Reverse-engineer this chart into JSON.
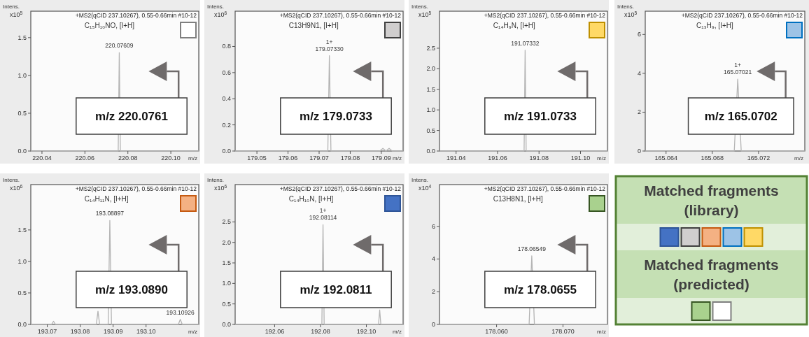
{
  "chart_data": [
    {
      "type": "line",
      "xlabel": "m/z",
      "ylabel": "Intens.",
      "annotations": [
        "+MS2(qCID 237.10267), 0.55-0.66min #10-12",
        "C₁₅H₁₀NO, [I+H]",
        {
          "text": "220.07609",
          "x": 220.076,
          "y": 1.3
        },
        "m/z 220.0761",
        "x10$^{5}$"
      ],
      "xlim": [
        220.0348,
        220.113
      ],
      "ylim": [
        0,
        1.85
      ],
      "xticks": [
        220.04,
        220.06,
        220.08,
        {
          "value": 220.1,
          "label": "220.10"
        }
      ],
      "yticks": [
        {
          "value": 0,
          "label": "0.0"
        },
        0.5,
        {
          "value": 1,
          "label": "1.0"
        },
        1.5
      ],
      "series": [
        {
          "color": "#b4b4b4",
          "x": [
            220.0348,
            220.0755,
            220.076,
            220.0765,
            220.113
          ],
          "values": [
            0,
            0,
            1.3,
            0,
            0
          ]
        }
      ]
    },
    {
      "type": "line",
      "xlabel": "m/z",
      "ylabel": "Intens.",
      "annotations": [
        "+MS2(qCID 237.10267), 0.55-0.66min #10-12",
        "C13H9N1, [I+H]",
        {
          "text": "1+\n179.07330",
          "x": 179.0733,
          "y": 0.73
        },
        "m/z 179.0733",
        "x10$^{6}$"
      ],
      "xlim": [
        179.043,
        179.097
      ],
      "ylim": [
        0,
        1.07
      ],
      "xticks": [
        179.05,
        179.06,
        179.07,
        179.08,
        179.09
      ],
      "yticks": [
        {
          "value": 0,
          "label": "0.0"
        },
        0.2,
        0.4,
        0.6,
        0.8
      ],
      "series": [
        {
          "color": "#b4b4b4",
          "x": [
            179.043,
            179.0728,
            179.0733,
            179.0738,
            179.0895,
            179.0905,
            179.0915,
            179.0925,
            179.0935,
            179.097
          ],
          "values": [
            0,
            0,
            0.73,
            0,
            0,
            0.02,
            0,
            0.02,
            0,
            0
          ]
        }
      ]
    },
    {
      "type": "line",
      "xlabel": "m/z",
      "ylabel": "Intens.",
      "annotations": [
        "+MS2(qCID 237.10267), 0.55-0.66min #10-12",
        "C₁₄H₉N, [I+H]",
        {
          "text": "191.07332",
          "x": 191.0733,
          "y": 2.45
        },
        "m/z 191.0733",
        "x10$^{5}$"
      ],
      "xlim": [
        191.032,
        191.113
      ],
      "ylim": [
        0,
        3.4
      ],
      "xticks": [
        191.04,
        191.06,
        191.08,
        {
          "value": 191.1,
          "label": "191.10"
        }
      ],
      "yticks": [
        {
          "value": 0,
          "label": "0.0"
        },
        0.5,
        {
          "value": 1,
          "label": "1.0"
        },
        1.5,
        {
          "value": 2,
          "label": "2.0"
        },
        2.5
      ],
      "series": [
        {
          "color": "#b4b4b4",
          "x": [
            191.032,
            191.0728,
            191.0733,
            191.0738,
            191.113
          ],
          "values": [
            0,
            0,
            2.45,
            0,
            0
          ]
        }
      ]
    },
    {
      "type": "line",
      "xlabel": "m/z",
      "ylabel": "Intens.",
      "annotations": [
        "+MS2(qCID 237.10267), 0.55-0.66min #10-12",
        "C₁₃H₉, [I+H]",
        {
          "text": "1+\n165.07021",
          "x": 165.0702,
          "y": 3.7
        },
        "m/z 165.0702",
        "x10$^{5}$"
      ],
      "xlim": [
        165.0622,
        165.076
      ],
      "ylim": [
        0,
        7.2
      ],
      "xticks": [
        165.064,
        165.068,
        165.072
      ],
      "yticks": [
        0,
        2,
        4,
        6
      ],
      "series": [
        {
          "color": "#b4b4b4",
          "x": [
            165.0622,
            165.0699,
            165.0702,
            165.0705,
            165.076
          ],
          "values": [
            0,
            0,
            3.7,
            0,
            0
          ]
        }
      ]
    },
    {
      "type": "line",
      "xlabel": "m/z",
      "ylabel": "Intens.",
      "annotations": [
        "+MS2(qCID 237.10267), 0.55-0.66min #10-12",
        "C₁₄H₁₁N, [I+H]",
        {
          "text": "193.08897",
          "x": 193.089,
          "y": 1.65
        },
        {
          "text": "193.10926",
          "x": 193.1104,
          "y": 0.08
        },
        "m/z 193.0890",
        "x10$^{6}$"
      ],
      "xlim": [
        193.065,
        193.116
      ],
      "ylim": [
        0,
        2.22
      ],
      "xticks": [
        193.07,
        193.08,
        193.09,
        {
          "value": 193.1,
          "label": "193.10"
        }
      ],
      "yticks": [
        {
          "value": 0,
          "label": "0.0"
        },
        0.5,
        {
          "value": 1,
          "label": "1.0"
        },
        1.5
      ],
      "series": [
        {
          "color": "#b4b4b4",
          "x": [
            193.065,
            193.0713,
            193.0719,
            193.0725,
            193.0849,
            193.0854,
            193.0859,
            193.0885,
            193.089,
            193.0895,
            193.1098,
            193.1104,
            193.111,
            193.116
          ],
          "values": [
            0,
            0,
            0.05,
            0,
            0,
            0.21,
            0,
            0,
            1.65,
            0,
            0,
            0.08,
            0,
            0
          ]
        }
      ]
    },
    {
      "type": "line",
      "xlabel": "m/z",
      "ylabel": "Intens.",
      "annotations": [
        "+MS2(qCID 237.10267), 0.55-0.66min #10-12",
        "C₁₄H₁₀N, [I+H]",
        {
          "text": "1+\n192.08114",
          "x": 192.0811,
          "y": 2.43
        },
        "m/z 192.0811",
        "x10$^{6}$"
      ],
      "xlim": [
        192.0428,
        192.116
      ],
      "ylim": [
        0,
        3.41
      ],
      "xticks": [
        192.06,
        192.08,
        {
          "value": 192.1,
          "label": "192.10"
        }
      ],
      "yticks": [
        {
          "value": 0,
          "label": "0.0"
        },
        0.5,
        {
          "value": 1,
          "label": "1.0"
        },
        1.5,
        {
          "value": 2,
          "label": "2.0"
        },
        2.5
      ],
      "series": [
        {
          "color": "#b4b4b4",
          "x": [
            192.0428,
            192.0806,
            192.0811,
            192.0816,
            192.1053,
            192.1058,
            192.1063,
            192.116
          ],
          "values": [
            0,
            0,
            2.43,
            0,
            0,
            0.35,
            0,
            0
          ]
        }
      ]
    },
    {
      "type": "line",
      "xlabel": "m/z",
      "ylabel": "Intens.",
      "annotations": [
        "+MS2(qCID 237.10267), 0.55-0.66min #10-12",
        "C13H8N1, [I+H]",
        {
          "text": "178.06549",
          "x": 178.0653,
          "y": 4.19
        },
        "m/z 178.0655",
        "x10$^{4}$"
      ],
      "xlim": [
        178.0514,
        178.0767
      ],
      "ylim": [
        0,
        8.55
      ],
      "xticks": [
        {
          "value": 178.06,
          "label": "178.060"
        },
        {
          "value": 178.07,
          "label": "178.070"
        }
      ],
      "yticks": [
        0,
        2,
        4,
        6
      ],
      "series": [
        {
          "color": "#b4b4b4",
          "x": [
            178.0514,
            178.0649,
            178.0653,
            178.0657,
            178.0767
          ],
          "values": [
            0,
            0,
            4.19,
            0,
            0
          ]
        }
      ]
    },
    {
      "type": "other",
      "annotations": [
        "Matched fragments\n(library)",
        "Matched fragments\n(predicted)"
      ]
    }
  ]
}
